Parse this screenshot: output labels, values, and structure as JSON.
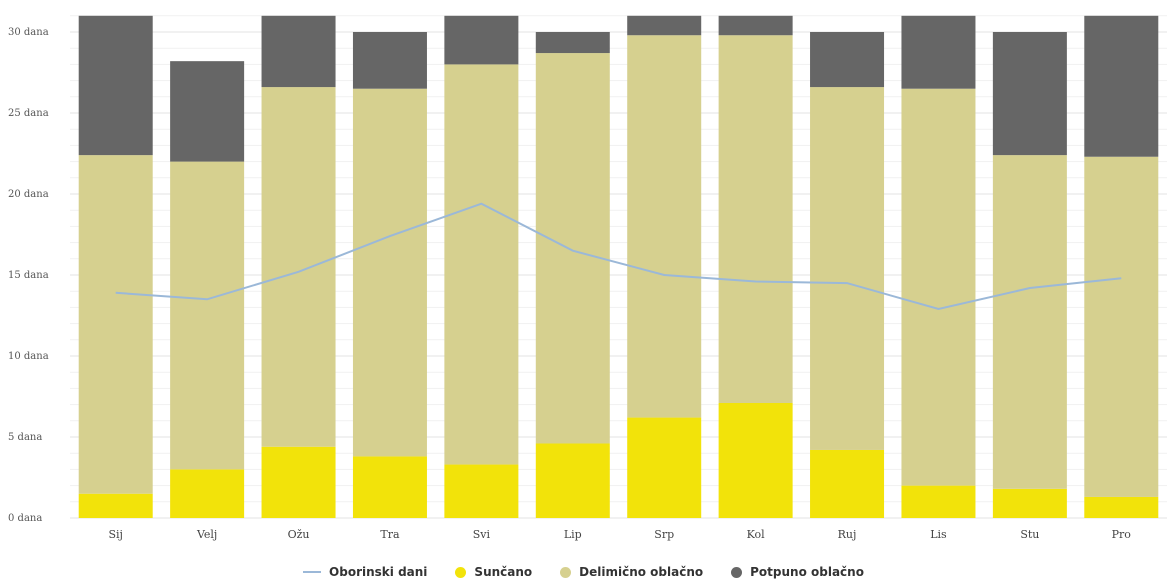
{
  "chart_data": {
    "type": "bar",
    "stacked": true,
    "categories": [
      "Sij",
      "Velj",
      "Ožu",
      "Tra",
      "Svi",
      "Lip",
      "Srp",
      "Kol",
      "Ruj",
      "Lis",
      "Stu",
      "Pro"
    ],
    "y_tick_labels": [
      "0 dana",
      "5 dana",
      "10 dana",
      "15 dana",
      "20 dana",
      "25 dana",
      "30 dana"
    ],
    "y_ticks": [
      0,
      5,
      10,
      15,
      20,
      25,
      30
    ],
    "ylim": [
      0,
      31
    ],
    "grid": true,
    "legend_position": "bottom-center",
    "series": [
      {
        "name": "Sunčano",
        "color": "#f2e30a",
        "values": [
          1.5,
          3.0,
          4.4,
          3.8,
          3.3,
          4.6,
          6.2,
          7.1,
          4.2,
          2.0,
          1.8,
          1.3
        ]
      },
      {
        "name": "Delimično oblačno",
        "color": "#d6d08f",
        "values": [
          20.9,
          19.0,
          22.2,
          22.7,
          24.7,
          24.1,
          23.6,
          22.7,
          22.4,
          24.5,
          20.6,
          21.0
        ]
      },
      {
        "name": "Potpuno oblačno",
        "color": "#666666",
        "values": [
          8.6,
          6.2,
          4.4,
          3.5,
          3.0,
          1.3,
          1.2,
          1.2,
          3.4,
          4.5,
          7.6,
          8.7
        ]
      }
    ],
    "line_series": {
      "name": "Oborinski dani",
      "color": "#9bb8d8",
      "values": [
        13.9,
        13.5,
        15.2,
        17.4,
        19.4,
        16.5,
        15.0,
        14.6,
        14.5,
        12.9,
        14.2,
        14.8
      ]
    }
  }
}
